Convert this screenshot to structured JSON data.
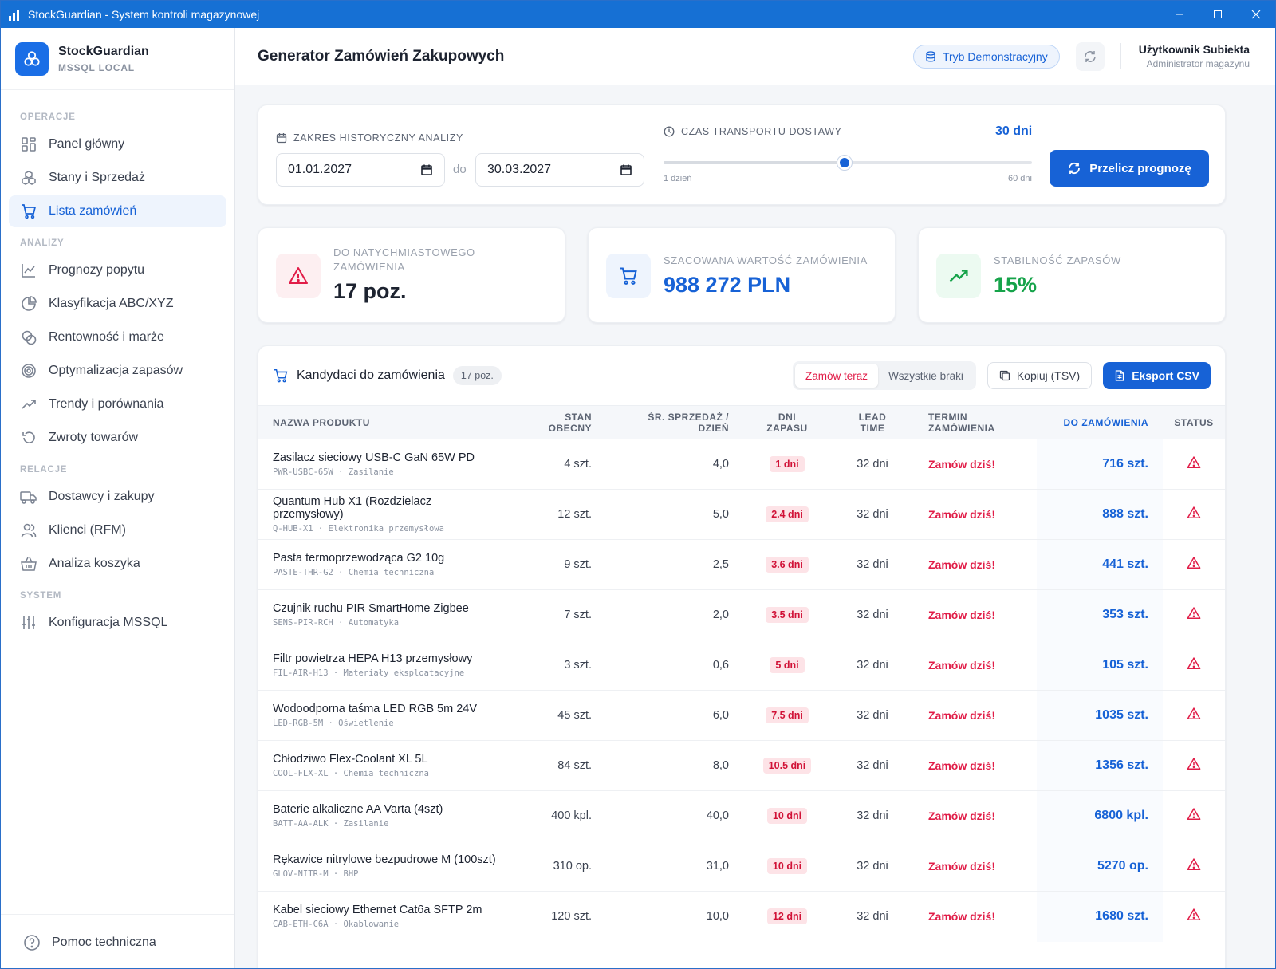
{
  "window": {
    "title": "StockGuardian - System kontroli magazynowej"
  },
  "brand": {
    "name": "StockGuardian",
    "sub": "MSSQL LOCAL"
  },
  "nav": {
    "sections": {
      "operations": "OPERACJE",
      "analysis": "ANALIZY",
      "relations": "RELACJE",
      "system": "SYSTEM"
    },
    "items": {
      "dashboard": "Panel główny",
      "stock": "Stany i Sprzedaż",
      "orders": "Lista zamówień",
      "forecast": "Prognozy popytu",
      "abc": "Klasyfikacja ABC/XYZ",
      "profit": "Rentowność i marże",
      "optimize": "Optymalizacja zapasów",
      "trends": "Trendy i porównania",
      "returns": "Zwroty towarów",
      "suppliers": "Dostawcy i zakupy",
      "clients": "Klienci (RFM)",
      "basket": "Analiza koszyka",
      "config": "Konfiguracja MSSQL"
    },
    "help": "Pomoc techniczna"
  },
  "header": {
    "title": "Generator Zamówień Zakupowych",
    "demo_badge": "Tryb Demonstracyjny",
    "user_name": "Użytkownik Subiekta",
    "user_role": "Administrator magazynu"
  },
  "filters": {
    "range_label": "ZAKRES HISTORYCZNY ANALIZY",
    "date_from": "01.01.2027",
    "date_sep": "do",
    "date_to": "30.03.2027",
    "lead_label": "CZAS TRANSPORTU DOSTAWY",
    "lead_value_text": "30 dni",
    "lead_value": 30,
    "lead_min": 1,
    "lead_max": 60,
    "lead_min_label": "1 dzień",
    "lead_max_label": "60 dni",
    "recalc_label": "Przelicz prognozę"
  },
  "kpis": {
    "urgent": {
      "label": "DO NATYCHMIASTOWEGO ZAMÓWIENIA",
      "value": "17 poz.",
      "color": "#1d2330"
    },
    "value": {
      "label": "SZACOWANA WARTOŚĆ ZAMÓWIENIA",
      "value": "988 272 PLN",
      "color": "#1762d6"
    },
    "stability": {
      "label": "STABILNOŚĆ ZAPASÓW",
      "value": "15%",
      "color": "#16a34a"
    }
  },
  "table": {
    "title": "Kandydaci do zamówienia",
    "count": "17 poz.",
    "toggle_now": "Zamów teraz",
    "toggle_all": "Wszystkie braki",
    "copy_label": "Kopiuj (TSV)",
    "export_label": "Eksport CSV",
    "columns": {
      "name": "NAZWA PRODUKTU",
      "stock": "STAN OBECNY",
      "avg": "ŚR. SPRZEDAŻ / DZIEŃ",
      "days": "DNI ZAPASU",
      "lead": "LEAD TIME",
      "term": "TERMIN ZAMÓWIENIA",
      "order": "DO ZAMÓWIENIA",
      "status": "STATUS"
    },
    "rows": [
      {
        "name": "Zasilacz sieciowy USB-C GaN 65W PD",
        "sku": "PWR-USBC-65W · Zasilanie",
        "stock": "4 szt.",
        "avg": "4,0",
        "days": "1 dni",
        "lead": "32 dni",
        "term": "Zamów dziś!",
        "order": "716 szt."
      },
      {
        "name": "Quantum Hub X1 (Rozdzielacz przemysłowy)",
        "sku": "Q-HUB-X1 · Elektronika przemysłowa",
        "stock": "12 szt.",
        "avg": "5,0",
        "days": "2.4 dni",
        "lead": "32 dni",
        "term": "Zamów dziś!",
        "order": "888 szt."
      },
      {
        "name": "Pasta termoprzewodząca G2 10g",
        "sku": "PASTE-THR-G2 · Chemia techniczna",
        "stock": "9 szt.",
        "avg": "2,5",
        "days": "3.6 dni",
        "lead": "32 dni",
        "term": "Zamów dziś!",
        "order": "441 szt."
      },
      {
        "name": "Czujnik ruchu PIR SmartHome Zigbee",
        "sku": "SENS-PIR-RCH · Automatyka",
        "stock": "7 szt.",
        "avg": "2,0",
        "days": "3.5 dni",
        "lead": "32 dni",
        "term": "Zamów dziś!",
        "order": "353 szt."
      },
      {
        "name": "Filtr powietrza HEPA H13 przemysłowy",
        "sku": "FIL-AIR-H13 · Materiały eksploatacyjne",
        "stock": "3 szt.",
        "avg": "0,6",
        "days": "5 dni",
        "lead": "32 dni",
        "term": "Zamów dziś!",
        "order": "105 szt."
      },
      {
        "name": "Wodoodporna taśma LED RGB 5m 24V",
        "sku": "LED-RGB-5M · Oświetlenie",
        "stock": "45 szt.",
        "avg": "6,0",
        "days": "7.5 dni",
        "lead": "32 dni",
        "term": "Zamów dziś!",
        "order": "1035 szt."
      },
      {
        "name": "Chłodziwo Flex-Coolant XL 5L",
        "sku": "COOL-FLX-XL · Chemia techniczna",
        "stock": "84 szt.",
        "avg": "8,0",
        "days": "10.5 dni",
        "lead": "32 dni",
        "term": "Zamów dziś!",
        "order": "1356 szt."
      },
      {
        "name": "Baterie alkaliczne AA Varta (4szt)",
        "sku": "BATT-AA-ALK · Zasilanie",
        "stock": "400 kpl.",
        "avg": "40,0",
        "days": "10 dni",
        "lead": "32 dni",
        "term": "Zamów dziś!",
        "order": "6800 kpl."
      },
      {
        "name": "Rękawice nitrylowe bezpudrowe M (100szt)",
        "sku": "GLOV-NITR-M · BHP",
        "stock": "310 op.",
        "avg": "31,0",
        "days": "10 dni",
        "lead": "32 dni",
        "term": "Zamów dziś!",
        "order": "5270 op."
      },
      {
        "name": "Kabel sieciowy Ethernet Cat6a SFTP 2m",
        "sku": "CAB-ETH-C6A · Okablowanie",
        "stock": "120 szt.",
        "avg": "10,0",
        "days": "12 dni",
        "lead": "32 dni",
        "term": "Zamów dziś!",
        "order": "1680 szt."
      }
    ]
  },
  "colors": {
    "accent": "#1762d6",
    "danger": "#e11d48",
    "success": "#16a34a",
    "titlebar": "#1670d4"
  }
}
